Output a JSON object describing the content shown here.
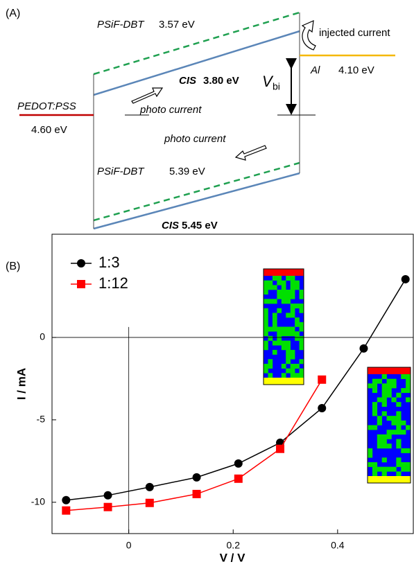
{
  "diagram": {
    "label": "(A)",
    "levels": [
      {
        "material": "PSiF-DBT",
        "energy": "3.57 eV"
      },
      {
        "material": "CIS",
        "energy": "3.80 eV"
      },
      {
        "material": "Al",
        "energy": "4.10 eV"
      },
      {
        "material": "PEDOT:PSS",
        "energy": "4.60 eV"
      },
      {
        "material": "PSiF-DBT",
        "energy": "5.39 eV"
      },
      {
        "material": "CIS",
        "energy": "5.45 eV"
      }
    ],
    "annotations": [
      "injected current",
      "photo current",
      "photo current"
    ],
    "vbi": {
      "symbol": "V",
      "subscript": "bi"
    }
  },
  "chart_data": {
    "type": "line",
    "panel_label": "(B)",
    "x_label": "V / V",
    "y_label": "I / mA",
    "x": [
      -0.12,
      -0.04,
      0.04,
      0.13,
      0.21,
      0.29,
      0.37,
      0.45,
      0.53
    ],
    "series": [
      {
        "name": "1:3",
        "color": "#000000",
        "marker": "circle",
        "values": [
          -9.87,
          -9.58,
          -9.08,
          -8.49,
          -7.65,
          -6.39,
          -4.29,
          -0.67,
          3.53
        ]
      },
      {
        "name": "1:12",
        "color": "#ff0000",
        "marker": "square",
        "values": [
          -10.5,
          -10.29,
          -10.04,
          -9.5,
          -8.57,
          -6.76,
          -2.56,
          null,
          null
        ]
      }
    ],
    "xlim": [
      -0.147,
      0.545
    ],
    "ylim": [
      -11.9,
      6.26
    ],
    "xticks": [
      0,
      0.2,
      0.4
    ],
    "yticks": [
      0,
      -5,
      -10
    ],
    "legend": "upper left"
  }
}
